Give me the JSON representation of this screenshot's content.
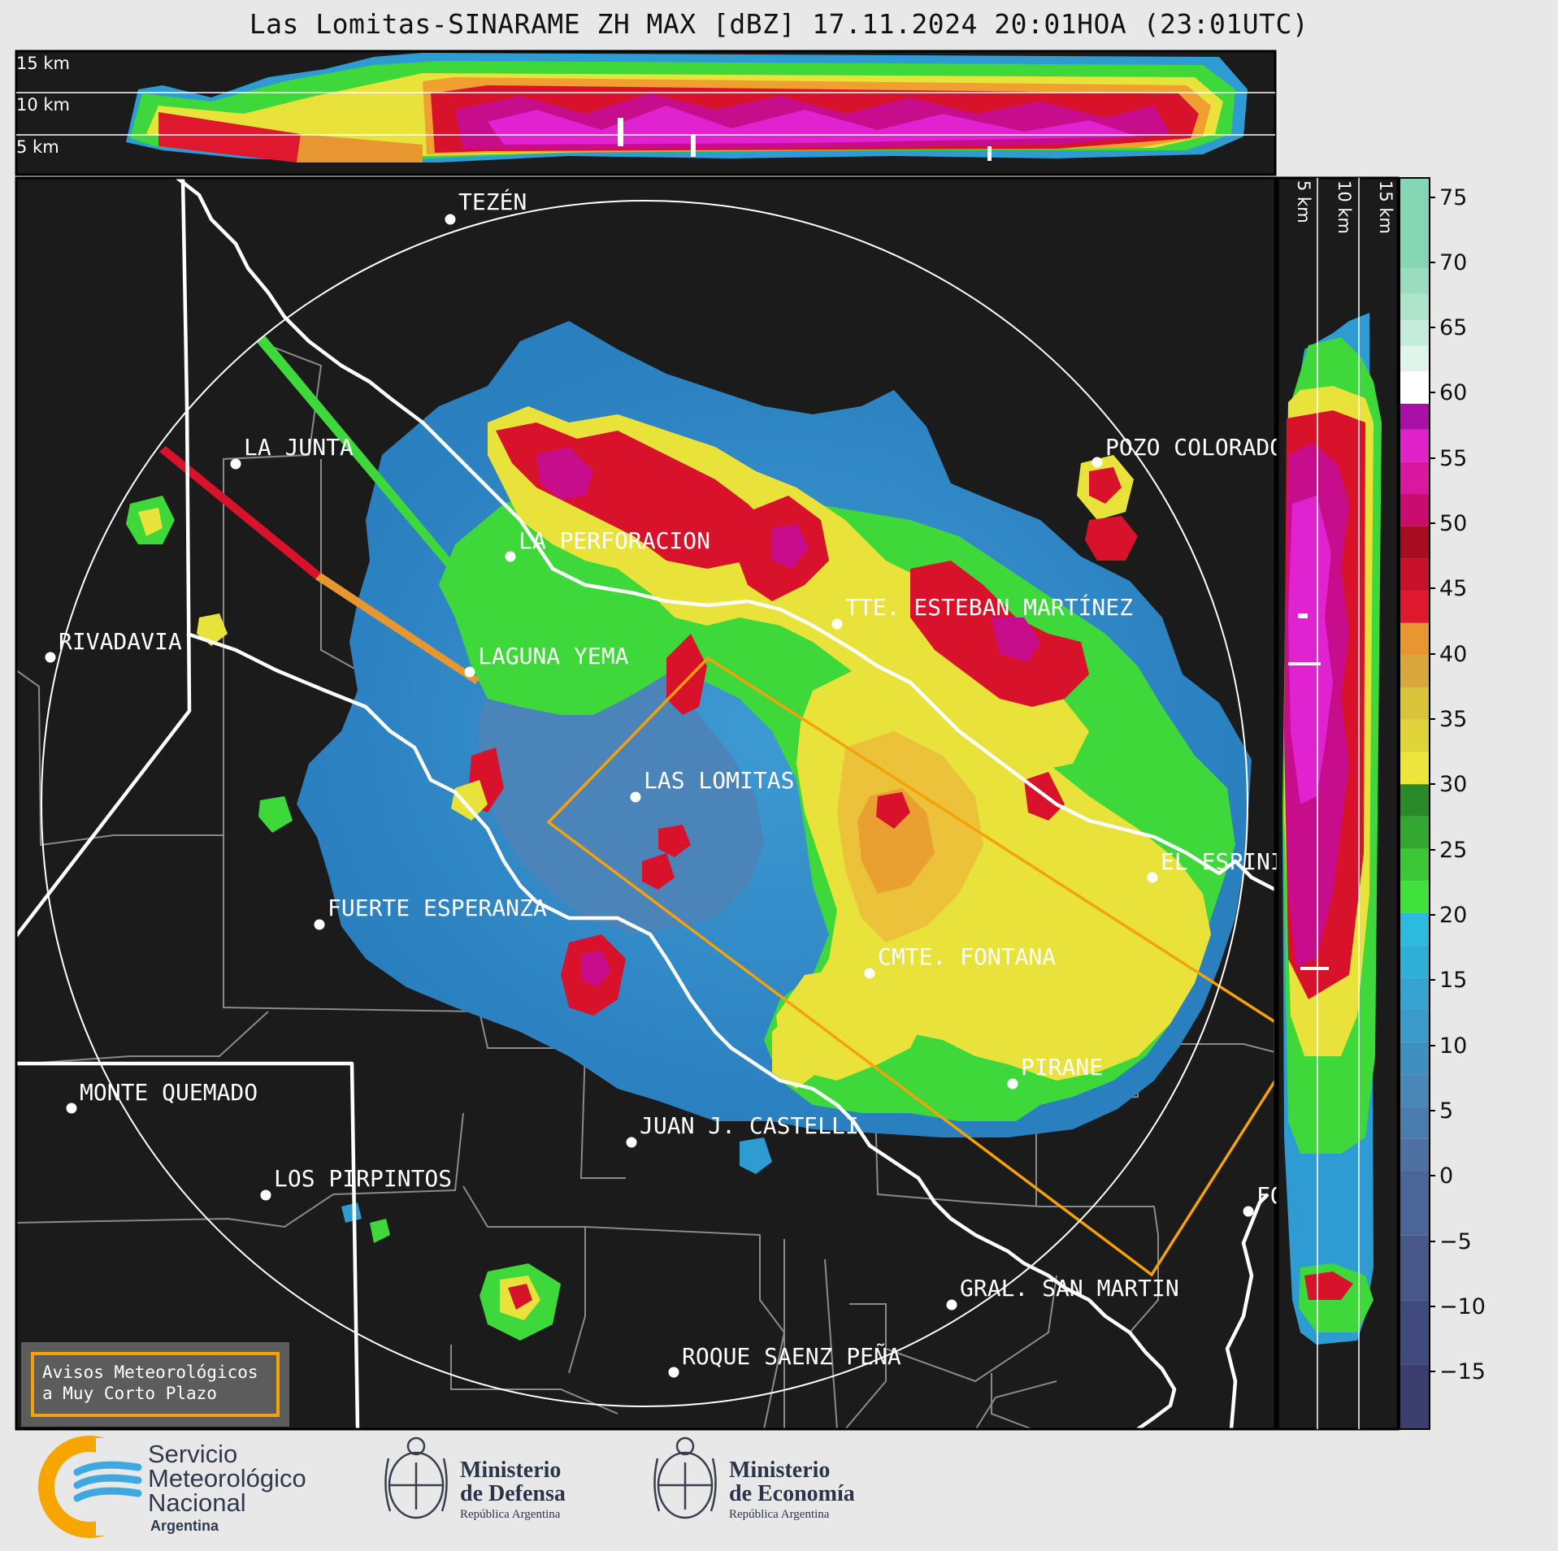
{
  "header": {
    "title": "Las Lomitas-SINARAME ZH MAX [dBZ] 17.11.2024 20:01HOA (23:01UTC)"
  },
  "top_panel": {
    "altitude_labels": [
      "15 km",
      "10 km",
      "5 km"
    ]
  },
  "side_panel": {
    "altitude_labels": [
      "5 km",
      "10 km",
      "15 km"
    ]
  },
  "colorbar": {
    "ticks": [
      "75",
      "70",
      "65",
      "60",
      "55",
      "50",
      "45",
      "40",
      "35",
      "30",
      "25",
      "20",
      "15",
      "10",
      "5",
      "0",
      "−5",
      "−10",
      "−15"
    ],
    "range_dbz": [
      -20,
      77
    ]
  },
  "map": {
    "cities": [
      {
        "name": "TEZÉN"
      },
      {
        "name": "LA JUNTA"
      },
      {
        "name": "POZO COLORADO"
      },
      {
        "name": "LA PERFORACION"
      },
      {
        "name": "TTE. ESTEBAN MARTÍNEZ"
      },
      {
        "name": "RIVADAVIA"
      },
      {
        "name": "LAGUNA YEMA"
      },
      {
        "name": "LAS LOMITAS"
      },
      {
        "name": "EL ESPINILLO"
      },
      {
        "name": "FUERTE ESPERANZA"
      },
      {
        "name": "CMTE. FONTANA"
      },
      {
        "name": "PIRANE"
      },
      {
        "name": "MONTE QUEMADO"
      },
      {
        "name": "JUAN J. CASTELLI"
      },
      {
        "name": "LOS PIRPINTOS"
      },
      {
        "name": "GRAL. SAN MARTIN"
      },
      {
        "name": "ROQUE SAENZ PEÑA"
      },
      {
        "name": "FORMOSA"
      }
    ]
  },
  "notice": {
    "line1": "Avisos Meteorológicos",
    "line2": "a Muy Corto Plazo"
  },
  "logos": {
    "smn": {
      "line1": "Servicio",
      "line2": "Meteorológico",
      "line3": "Nacional",
      "line4": "Argentina"
    },
    "defensa": {
      "line1": "Ministerio",
      "line2": "de Defensa",
      "line3": "República Argentina"
    },
    "economia": {
      "line1": "Ministerio",
      "line2": "de Economía",
      "line3": "República Argentina"
    }
  }
}
